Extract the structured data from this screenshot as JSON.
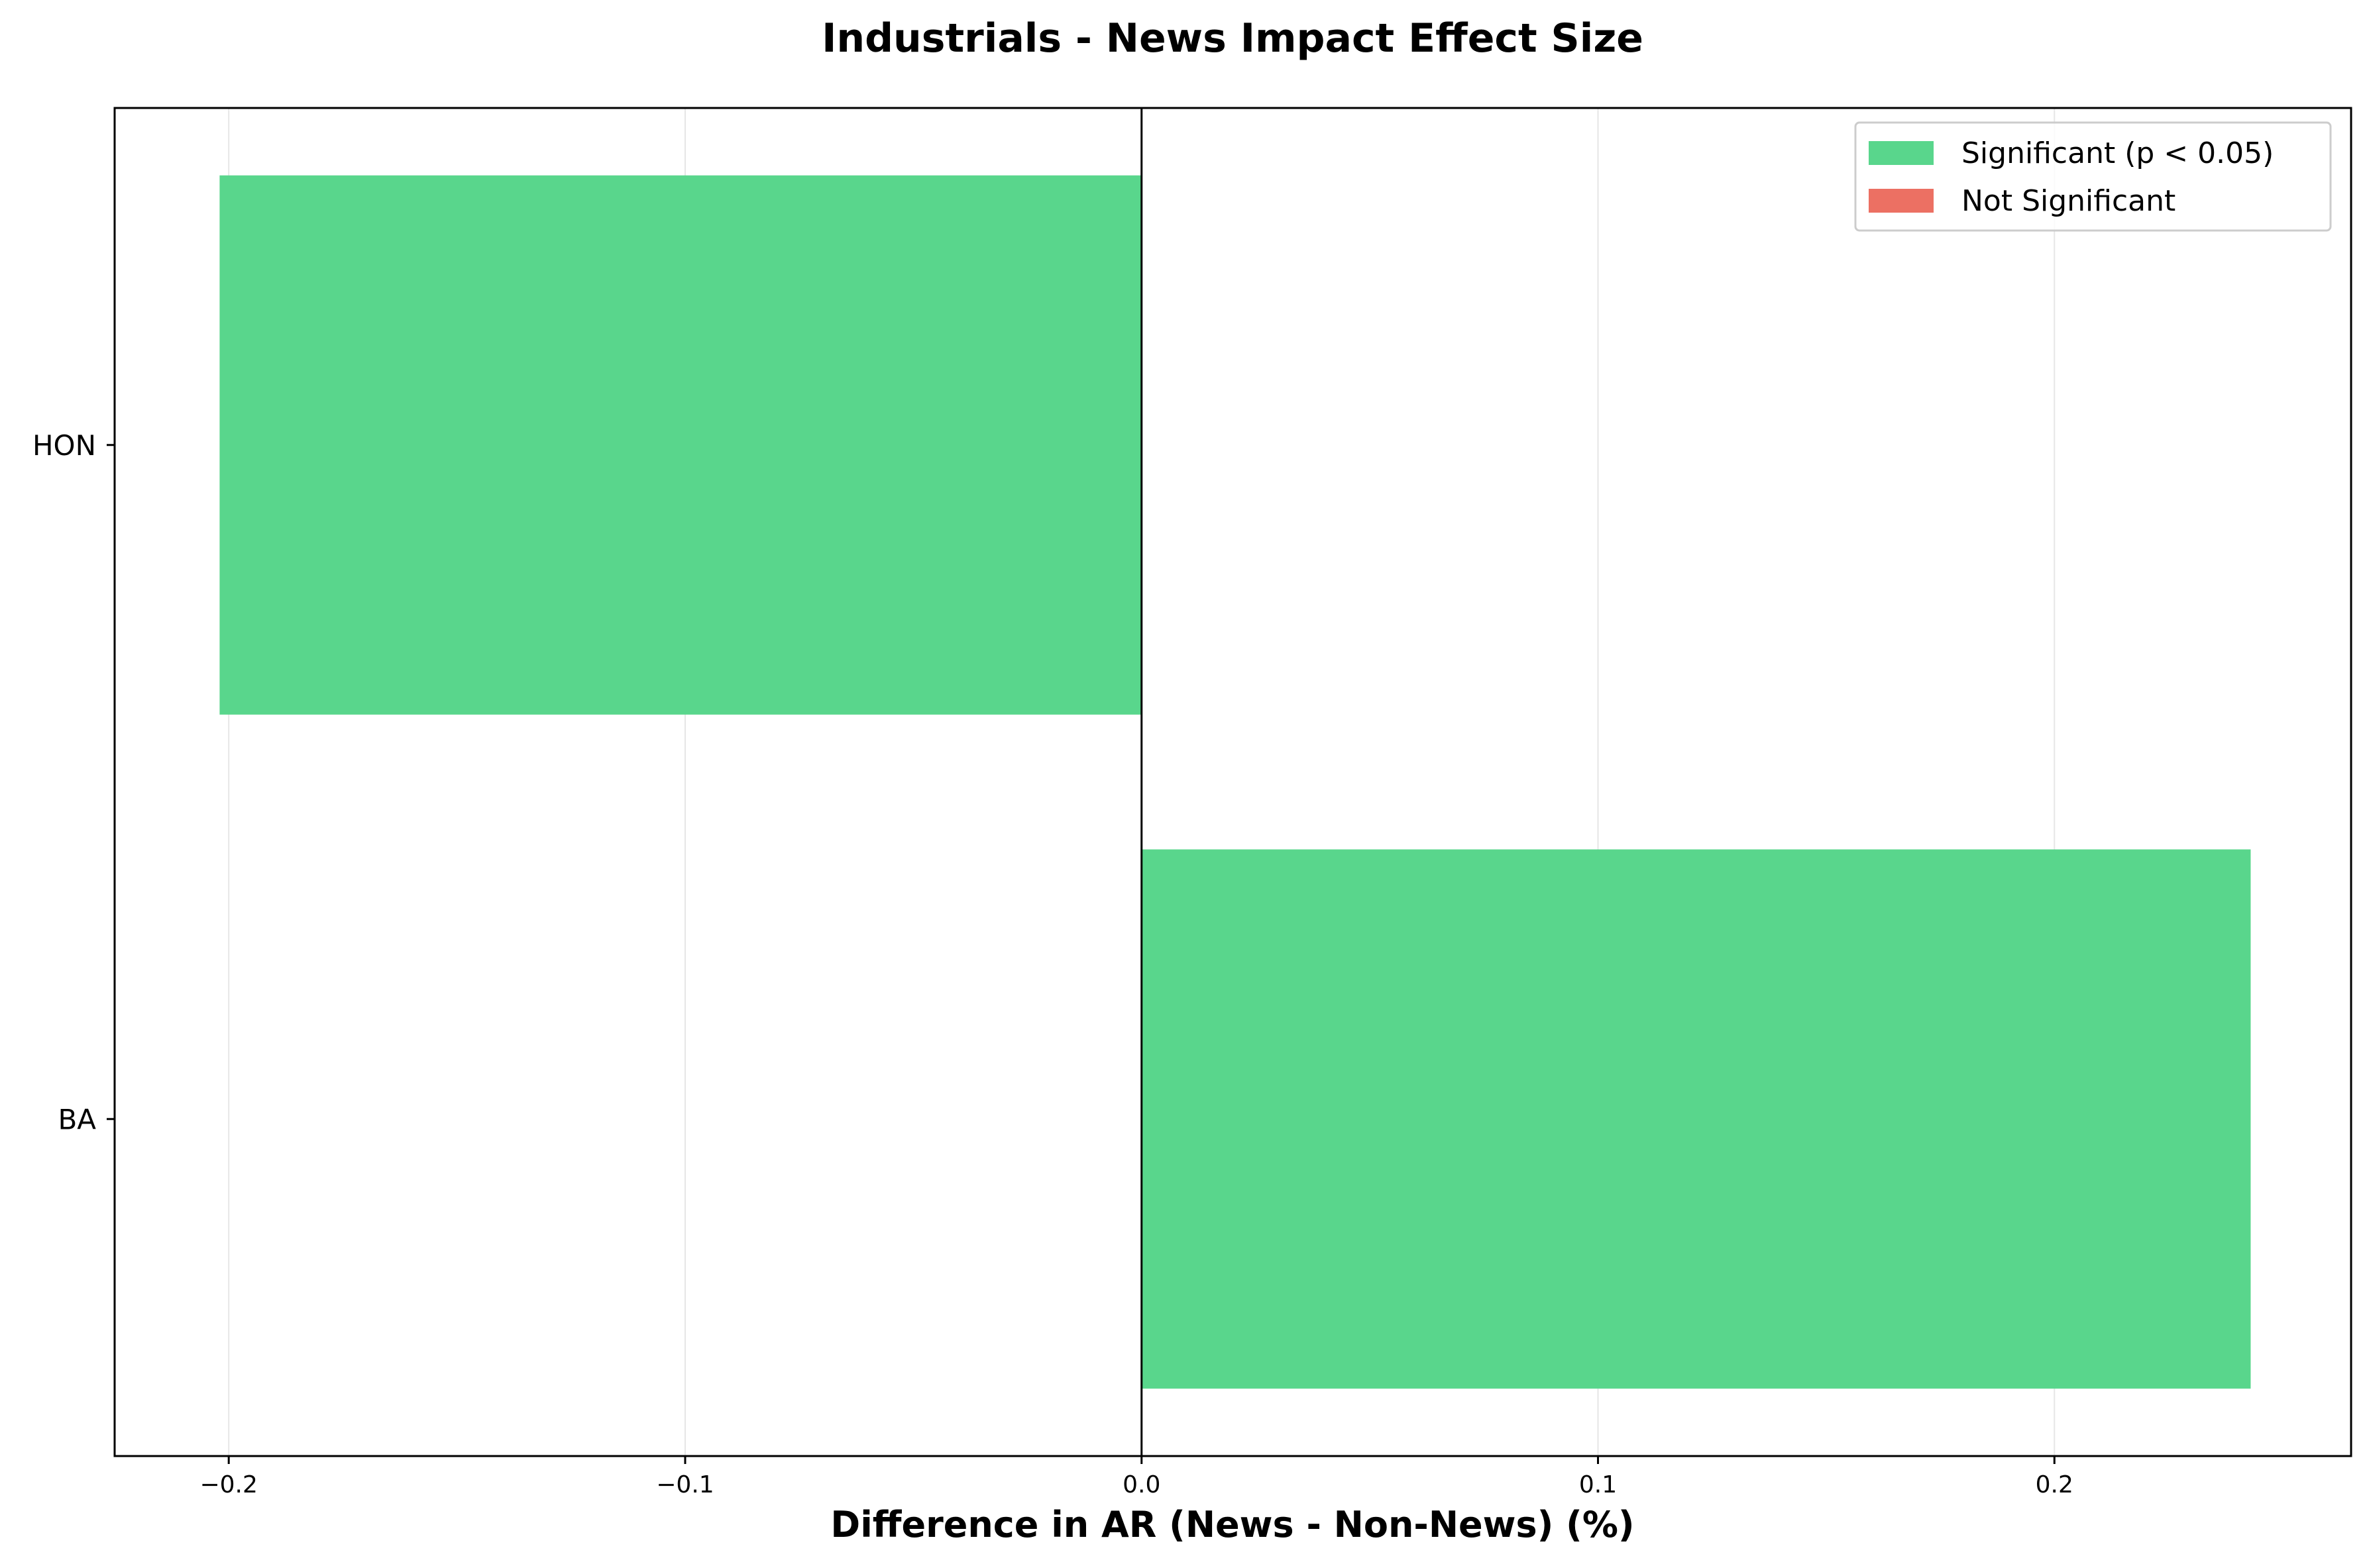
{
  "chart_data": {
    "type": "bar",
    "orientation": "horizontal",
    "title": "Industrials - News Impact Effect Size",
    "xlabel": "Difference in AR (News - Non-News) (%)",
    "ylabel": "",
    "categories": [
      "HON",
      "BA"
    ],
    "values": [
      -0.202,
      0.243
    ],
    "significant": [
      true,
      true
    ],
    "xlim": [
      -0.225,
      0.265
    ],
    "xticks": [
      -0.2,
      -0.1,
      0.0,
      0.1,
      0.2
    ],
    "xtick_labels": [
      "−0.2",
      "−0.1",
      "0.0",
      "0.1",
      "0.2"
    ],
    "grid": "x",
    "zero_line": true,
    "legend": {
      "placement": "top-right",
      "entries": [
        {
          "label": "Significant (p < 0.05)",
          "color": "#59d68c"
        },
        {
          "label": "Not Significant",
          "color": "#ec7063"
        }
      ]
    },
    "colors": {
      "significant": "#59d68c",
      "not_significant": "#ec7063",
      "grid": "#e6e6e6",
      "axis": "#000000"
    }
  }
}
